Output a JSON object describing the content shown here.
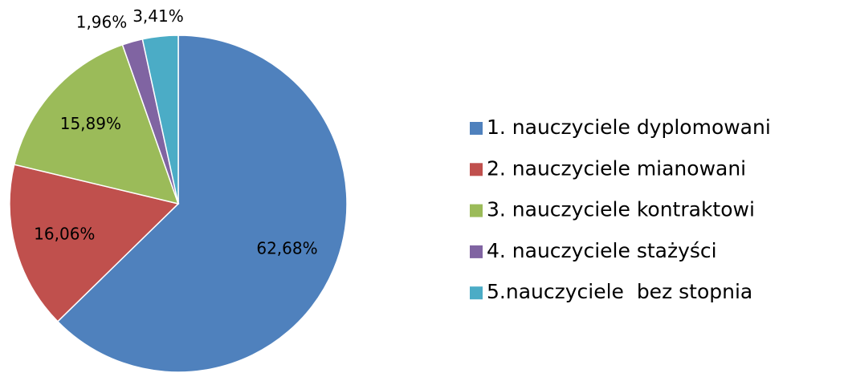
{
  "chart_data": {
    "type": "pie",
    "categories": [
      "1. nauczyciele dyplomowani",
      "2. nauczyciele mianowani",
      "3. nauczyciele kontraktowi",
      "4. nauczyciele stażyści",
      "5.nauczyciele  bez stopnia"
    ],
    "values": [
      62.68,
      16.06,
      15.89,
      1.96,
      3.41
    ],
    "value_labels": [
      "62,68%",
      "16,06%",
      "15,89%",
      "1,96%",
      "3,41%"
    ],
    "colors": [
      "#4f81bd",
      "#c0504d",
      "#9bbb59",
      "#8064a2",
      "#4bacc6"
    ],
    "legend": "right"
  }
}
